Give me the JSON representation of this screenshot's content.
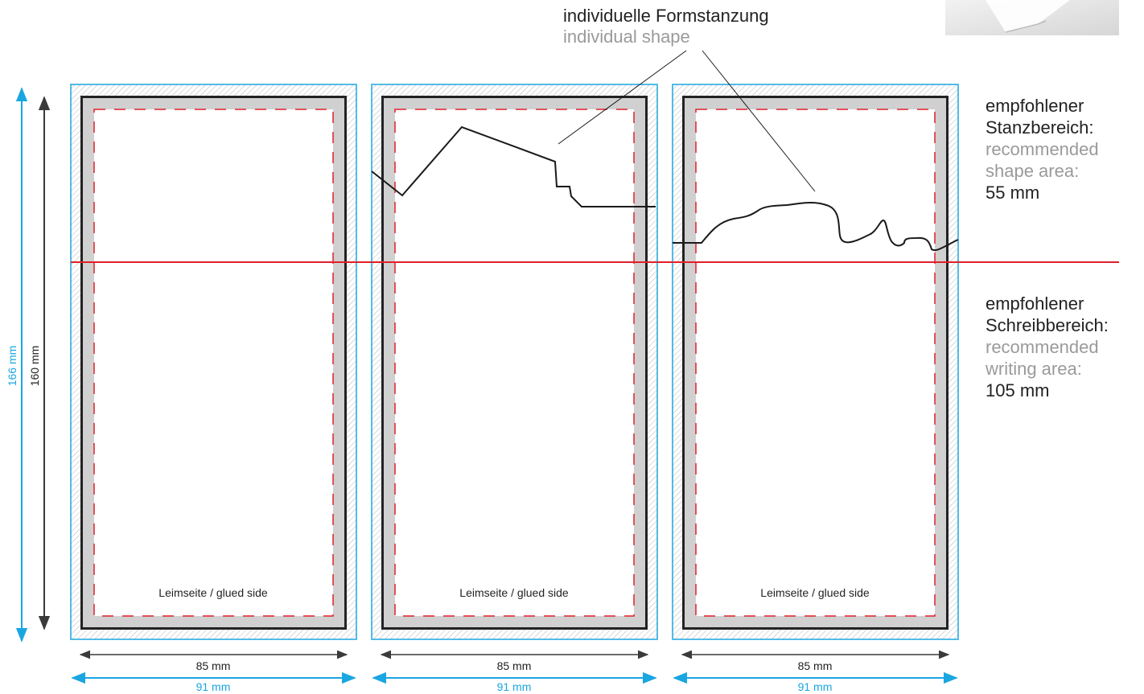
{
  "colors": {
    "bleed": "#1aa6e0",
    "cut": "#222222",
    "safe_margin": "#d0d0d0",
    "dashed": "#e0202a",
    "divider": "#e0202a",
    "grey_text": "#9a9a9a"
  },
  "callout": {
    "title_de": "individuelle Formstanzung",
    "title_en": "individual shape"
  },
  "cards": [
    {
      "label": "Leimseite / glued side",
      "width_inner": "85 mm",
      "width_outer": "91 mm",
      "shape": "none"
    },
    {
      "label": "Leimseite / glued side",
      "width_inner": "85 mm",
      "width_outer": "91 mm",
      "shape": "angular"
    },
    {
      "label": "Leimseite / glued side",
      "width_inner": "85 mm",
      "width_outer": "91 mm",
      "shape": "curved"
    }
  ],
  "height_inner": "160 mm",
  "height_outer": "166 mm",
  "shape_area": {
    "line1": "empfohlener",
    "line2": "Stanzbereich:",
    "line3": "recommended",
    "line4": "shape area:",
    "value": "55 mm"
  },
  "writing_area": {
    "line1": "empfohlener",
    "line2": "Schreibbereich:",
    "line3": "recommended",
    "line4": "writing area:",
    "value": "105 mm"
  },
  "icons": {
    "dimension_arrow": "double-arrow-icon",
    "product_photo": "card-photo-icon"
  }
}
